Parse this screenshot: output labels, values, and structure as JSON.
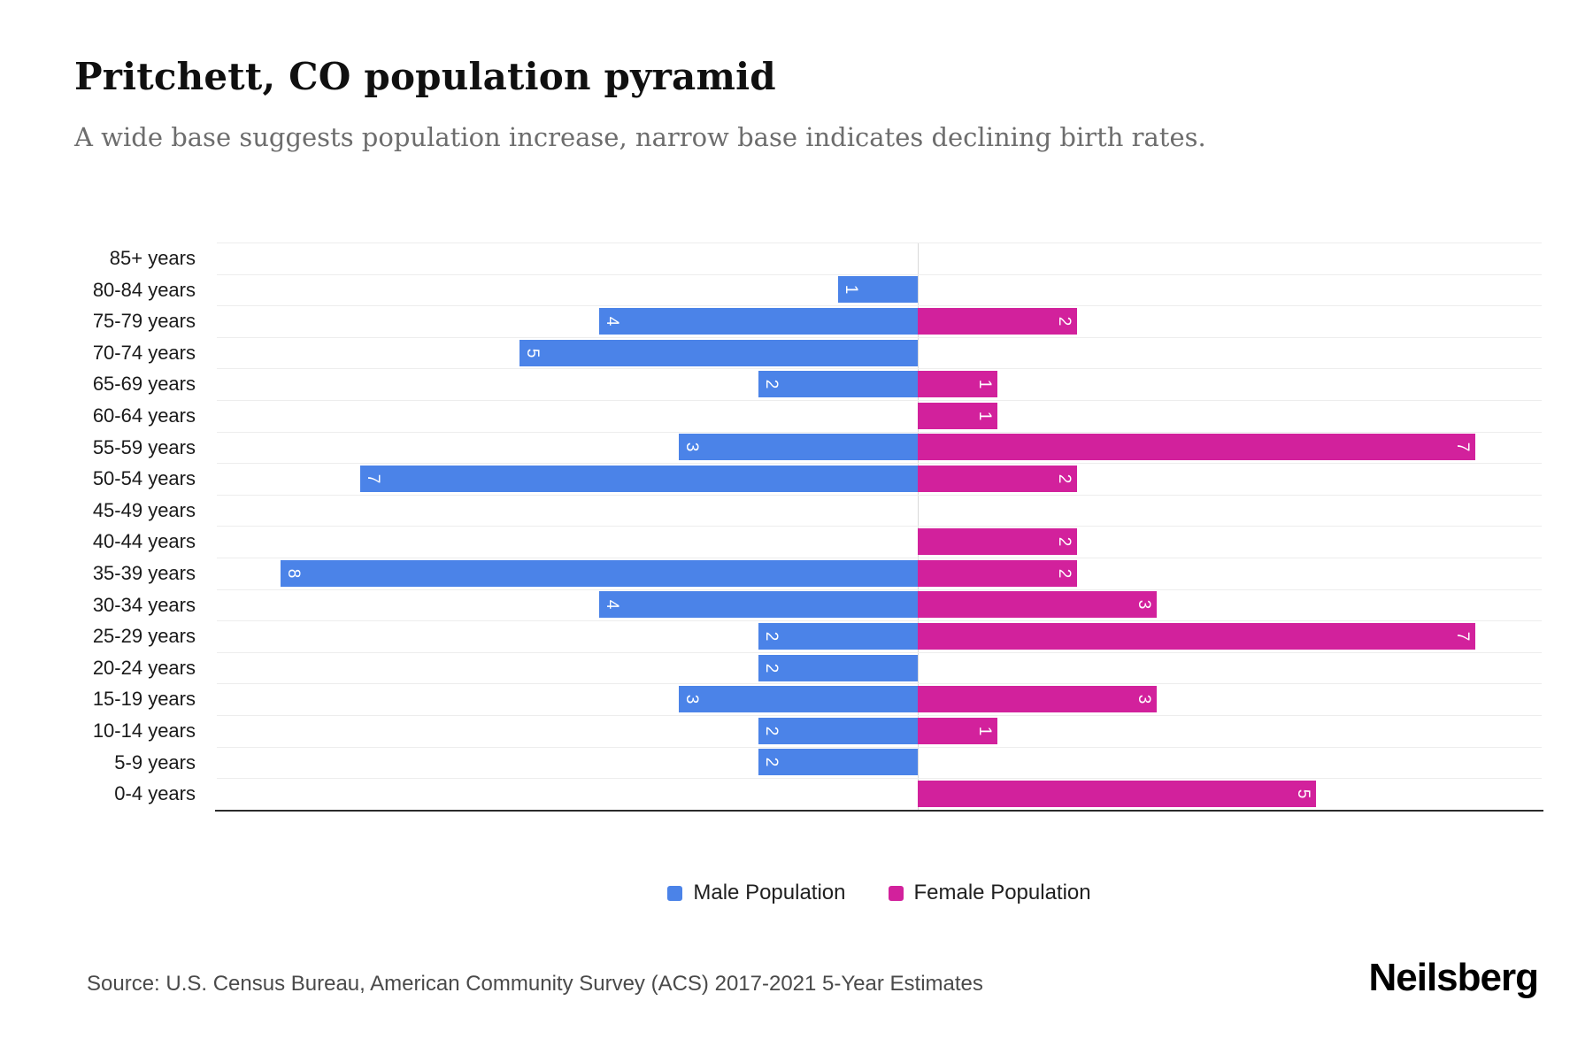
{
  "header": {
    "title": "Pritchett, CO population pyramid",
    "subtitle": "A wide base suggests population increase, narrow base indicates declining birth rates."
  },
  "chart_data": {
    "type": "bar",
    "variant": "population-pyramid",
    "orientation": "horizontal",
    "categories": [
      "85+ years",
      "80-84 years",
      "75-79 years",
      "70-74 years",
      "65-69 years",
      "60-64 years",
      "55-59 years",
      "50-54 years",
      "45-49 years",
      "40-44 years",
      "35-39 years",
      "30-34 years",
      "25-29 years",
      "20-24 years",
      "15-19 years",
      "10-14 years",
      "5-9 years",
      "0-4 years"
    ],
    "series": [
      {
        "name": "Male Population",
        "color": "#4b83e8",
        "side": "left",
        "values": [
          0,
          1,
          4,
          5,
          2,
          0,
          3,
          7,
          0,
          0,
          8,
          4,
          2,
          2,
          3,
          2,
          2,
          0
        ]
      },
      {
        "name": "Female Population",
        "color": "#d2219c",
        "side": "right",
        "values": [
          0,
          0,
          2,
          0,
          1,
          1,
          7,
          2,
          0,
          2,
          2,
          3,
          7,
          0,
          3,
          1,
          0,
          5
        ]
      }
    ],
    "xlim": [
      -9,
      8
    ],
    "grid": true,
    "value_labels": "white, rotated 90deg, at outer end of bar",
    "legend_position": "bottom-center"
  },
  "footer": {
    "source": "Source: U.S. Census Bureau, American Community Survey (ACS) 2017-2021 5-Year Estimates",
    "brand": "Neilsberg"
  }
}
